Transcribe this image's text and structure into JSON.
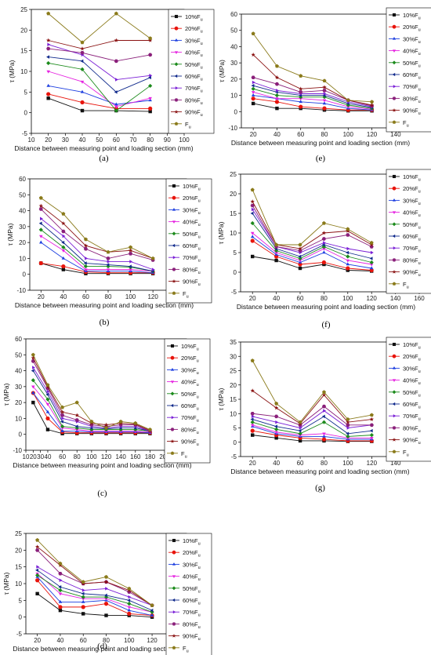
{
  "series_styles": [
    {
      "label": "10%F",
      "sub": "u",
      "color": "#111111",
      "marker": "square"
    },
    {
      "label": "20%F",
      "sub": "u",
      "color": "#e8140c",
      "marker": "circle"
    },
    {
      "label": "30%F",
      "sub": "u",
      "color": "#1d3fe0",
      "marker": "triangle"
    },
    {
      "label": "40%F",
      "sub": "u",
      "color": "#e522e0",
      "marker": "triangle-down"
    },
    {
      "label": "50%F",
      "sub": "u",
      "color": "#1b8a1b",
      "marker": "diamond"
    },
    {
      "label": "60%F",
      "sub": "u",
      "color": "#102a8c",
      "marker": "triangle-left"
    },
    {
      "label": "70%F",
      "sub": "u",
      "color": "#7a1fd6",
      "marker": "triangle-right"
    },
    {
      "label": "80%F",
      "sub": "u",
      "color": "#8a1f7a",
      "marker": "hexagon"
    },
    {
      "label": "90%F",
      "sub": "u",
      "color": "#8a1212",
      "marker": "star"
    },
    {
      "label": "F",
      "sub": "u",
      "color": "#8a7a1a",
      "marker": "pentagon"
    }
  ],
  "chart_data": [
    {
      "id": "a",
      "type": "line",
      "panel_label": "(a)",
      "xlabel": "Distance between measuring point and loading section (mm)",
      "ylabel": "τ (MPa)",
      "xlim": [
        10,
        100
      ],
      "ylim": [
        -5,
        25
      ],
      "xticks": [
        10,
        20,
        30,
        40,
        50,
        60,
        70,
        80,
        90,
        100
      ],
      "yticks": [
        -5,
        0,
        5,
        10,
        15,
        20,
        25
      ],
      "x": [
        20,
        40,
        60,
        80
      ],
      "series": [
        {
          "style": 0,
          "values": [
            3.5,
            0.5,
            0.5,
            0.3
          ]
        },
        {
          "style": 1,
          "values": [
            4.5,
            2.5,
            1.0,
            1.0
          ]
        },
        {
          "style": 2,
          "values": [
            6.5,
            5.0,
            2.0,
            3.0
          ]
        },
        {
          "style": 3,
          "values": [
            10.0,
            7.5,
            1.5,
            3.5
          ]
        },
        {
          "style": 4,
          "values": [
            12.0,
            10.5,
            0.5,
            6.5
          ]
        },
        {
          "style": 5,
          "values": [
            13.5,
            12.5,
            5.0,
            8.5
          ]
        },
        {
          "style": 6,
          "values": [
            16.5,
            14.0,
            8.0,
            9.0
          ]
        },
        {
          "style": 7,
          "values": [
            15.5,
            14.5,
            12.5,
            14.0
          ]
        },
        {
          "style": 8,
          "values": [
            17.5,
            15.5,
            17.5,
            17.5
          ]
        },
        {
          "style": 9,
          "values": [
            24.0,
            17.0,
            24.0,
            18.0
          ]
        }
      ]
    },
    {
      "id": "b",
      "type": "line",
      "panel_label": "(b)",
      "xlabel": "Distance between measuring point and loading section (mm)",
      "ylabel": "τ (MPa)",
      "xlim": [
        10,
        150
      ],
      "ylim": [
        -10,
        60
      ],
      "xticks": [
        20,
        40,
        60,
        80,
        100,
        120,
        140
      ],
      "yticks": [
        -10,
        0,
        10,
        20,
        30,
        40,
        50,
        60
      ],
      "x": [
        20,
        40,
        60,
        80,
        100,
        120
      ],
      "series": [
        {
          "style": 0,
          "values": [
            7.0,
            3.0,
            0.5,
            0.5,
            0.5,
            0.5
          ]
        },
        {
          "style": 1,
          "values": [
            7.0,
            5.0,
            1.5,
            1.0,
            1.0,
            1.0
          ]
        },
        {
          "style": 2,
          "values": [
            20.0,
            10.0,
            2.0,
            2.0,
            2.0,
            1.0
          ]
        },
        {
          "style": 3,
          "values": [
            24.0,
            15.0,
            3.0,
            3.0,
            3.0,
            2.0
          ]
        },
        {
          "style": 4,
          "values": [
            28.0,
            17.0,
            5.0,
            5.0,
            4.5,
            2.0
          ]
        },
        {
          "style": 5,
          "values": [
            32.0,
            20.0,
            7.0,
            6.0,
            5.0,
            2.0
          ]
        },
        {
          "style": 6,
          "values": [
            35.0,
            24.0,
            10.0,
            8.0,
            8.0,
            3.0
          ]
        },
        {
          "style": 7,
          "values": [
            41.0,
            27.0,
            16.0,
            10.0,
            13.0,
            9.0
          ]
        },
        {
          "style": 8,
          "values": [
            43.0,
            32.0,
            18.0,
            14.0,
            15.0,
            10.0
          ]
        },
        {
          "style": 9,
          "values": [
            48.0,
            38.0,
            22.0,
            14.0,
            17.0,
            10.0
          ]
        }
      ]
    },
    {
      "id": "c",
      "type": "line",
      "panel_label": "(c)",
      "xlabel": "Distance between measuring point and loading section (mm)",
      "ylabel": "τ (MPa)",
      "xlim": [
        10,
        230
      ],
      "ylim": [
        -10,
        60
      ],
      "xticks": [
        10,
        20,
        30,
        40,
        60,
        80,
        100,
        120,
        140,
        160,
        180,
        200,
        220
      ],
      "yticks": [
        -10,
        0,
        10,
        20,
        30,
        40,
        50,
        60
      ],
      "x": [
        20,
        40,
        60,
        80,
        100,
        120,
        140,
        160,
        180
      ],
      "series": [
        {
          "style": 0,
          "values": [
            20.0,
            3.0,
            0.5,
            0.5,
            0.5,
            0.5,
            0.5,
            0.5,
            0.5
          ]
        },
        {
          "style": 1,
          "values": [
            26.0,
            10.0,
            1.5,
            1.0,
            1.0,
            1.0,
            1.0,
            1.0,
            1.0
          ]
        },
        {
          "style": 2,
          "values": [
            26.0,
            14.0,
            2.0,
            2.0,
            1.5,
            1.5,
            1.5,
            1.5,
            1.0
          ]
        },
        {
          "style": 3,
          "values": [
            30.0,
            19.0,
            4.0,
            3.0,
            2.0,
            2.0,
            2.0,
            2.0,
            1.5
          ]
        },
        {
          "style": 4,
          "values": [
            34.0,
            22.0,
            5.0,
            4.0,
            3.0,
            3.0,
            3.0,
            3.0,
            2.0
          ]
        },
        {
          "style": 5,
          "values": [
            40.0,
            25.0,
            8.0,
            5.0,
            4.0,
            3.5,
            4.0,
            4.0,
            2.0
          ]
        },
        {
          "style": 6,
          "values": [
            42.0,
            27.0,
            10.0,
            8.0,
            5.0,
            4.0,
            5.0,
            5.0,
            2.0
          ]
        },
        {
          "style": 7,
          "values": [
            46.0,
            29.0,
            12.0,
            9.0,
            6.0,
            5.0,
            6.0,
            6.0,
            2.0
          ]
        },
        {
          "style": 8,
          "values": [
            48.0,
            30.0,
            14.0,
            12.0,
            7.0,
            6.0,
            7.0,
            6.5,
            2.5
          ]
        },
        {
          "style": 9,
          "values": [
            50.0,
            31.0,
            17.0,
            20.0,
            8.0,
            4.0,
            8.0,
            7.0,
            3.0
          ]
        }
      ]
    },
    {
      "id": "d",
      "type": "line",
      "panel_label": "(d)",
      "xlabel": "Distance between measuring point and loading section (mm)",
      "ylabel": "τ (MPa)",
      "xlim": [
        10,
        150
      ],
      "ylim": [
        -5,
        25
      ],
      "xticks": [
        20,
        40,
        60,
        80,
        100,
        120,
        140
      ],
      "yticks": [
        -5,
        0,
        5,
        10,
        15,
        20,
        25
      ],
      "x": [
        20,
        40,
        60,
        80,
        100,
        120
      ],
      "series": [
        {
          "style": 0,
          "values": [
            7.0,
            2.0,
            1.0,
            0.5,
            0.5,
            0.0
          ]
        },
        {
          "style": 1,
          "values": [
            11.0,
            3.0,
            3.0,
            4.0,
            1.0,
            0.5
          ]
        },
        {
          "style": 2,
          "values": [
            12.0,
            4.5,
            4.5,
            5.0,
            2.0,
            0.5
          ]
        },
        {
          "style": 3,
          "values": [
            13.0,
            7.0,
            5.5,
            5.5,
            3.0,
            1.5
          ]
        },
        {
          "style": 4,
          "values": [
            12.5,
            8.0,
            6.0,
            6.0,
            4.0,
            1.5
          ]
        },
        {
          "style": 5,
          "values": [
            14.0,
            9.0,
            7.0,
            6.5,
            5.0,
            2.0
          ]
        },
        {
          "style": 6,
          "values": [
            15.0,
            11.0,
            8.0,
            8.5,
            6.0,
            3.5
          ]
        },
        {
          "style": 7,
          "values": [
            20.0,
            13.0,
            10.0,
            10.5,
            7.5,
            3.5
          ]
        },
        {
          "style": 8,
          "values": [
            21.0,
            15.5,
            10.0,
            10.5,
            8.0,
            3.5
          ]
        },
        {
          "style": 9,
          "values": [
            23.0,
            16.0,
            10.5,
            12.0,
            8.5,
            3.5
          ]
        }
      ]
    },
    {
      "id": "e",
      "type": "line",
      "panel_label": "(e)",
      "xlabel": "Distance between measuring point and loading section (mm)",
      "ylabel": "τ (MPa)",
      "xlim": [
        10,
        150
      ],
      "ylim": [
        -10,
        60
      ],
      "xticks": [
        20,
        40,
        60,
        80,
        100,
        120,
        140
      ],
      "yticks": [
        -10,
        0,
        10,
        20,
        30,
        40,
        50,
        60
      ],
      "x": [
        20,
        40,
        60,
        80,
        100,
        120
      ],
      "series": [
        {
          "style": 0,
          "values": [
            5.0,
            2.0,
            2.0,
            1.0,
            0.5,
            0.5
          ]
        },
        {
          "style": 1,
          "values": [
            8.0,
            6.0,
            3.0,
            2.0,
            1.0,
            1.0
          ]
        },
        {
          "style": 2,
          "values": [
            10.0,
            8.0,
            6.0,
            5.0,
            2.0,
            1.0
          ]
        },
        {
          "style": 3,
          "values": [
            12.0,
            8.0,
            8.0,
            7.0,
            3.0,
            1.5
          ]
        },
        {
          "style": 4,
          "values": [
            14.0,
            10.0,
            9.0,
            9.0,
            4.0,
            2.0
          ]
        },
        {
          "style": 5,
          "values": [
            16.0,
            12.0,
            10.0,
            10.0,
            5.0,
            2.5
          ]
        },
        {
          "style": 6,
          "values": [
            18.0,
            13.0,
            11.0,
            11.0,
            6.0,
            3.0
          ]
        },
        {
          "style": 7,
          "values": [
            21.0,
            17.0,
            12.0,
            13.0,
            7.0,
            3.5
          ]
        },
        {
          "style": 8,
          "values": [
            35.0,
            21.0,
            14.0,
            15.0,
            7.0,
            4.0
          ]
        },
        {
          "style": 9,
          "values": [
            48.0,
            28.0,
            22.0,
            19.0,
            7.0,
            6.0
          ]
        }
      ]
    },
    {
      "id": "f",
      "type": "line",
      "panel_label": "(f)",
      "xlabel": "Distance between measuring point and loading section (mm)",
      "ylabel": "τ (MPa)",
      "xlim": [
        10,
        160
      ],
      "ylim": [
        -5,
        25
      ],
      "xticks": [
        20,
        40,
        60,
        80,
        100,
        120,
        140,
        160
      ],
      "yticks": [
        -5,
        0,
        5,
        10,
        15,
        20,
        25
      ],
      "x": [
        20,
        40,
        60,
        80,
        100,
        120
      ],
      "series": [
        {
          "style": 0,
          "values": [
            4.0,
            3.0,
            1.0,
            2.0,
            0.5,
            0.3
          ]
        },
        {
          "style": 1,
          "values": [
            8.0,
            4.0,
            2.0,
            2.5,
            1.0,
            0.5
          ]
        },
        {
          "style": 2,
          "values": [
            9.0,
            4.5,
            2.5,
            5.0,
            2.0,
            1.0
          ]
        },
        {
          "style": 3,
          "values": [
            10.0,
            5.0,
            3.0,
            6.0,
            3.0,
            2.0
          ]
        },
        {
          "style": 4,
          "values": [
            12.5,
            5.5,
            3.5,
            6.5,
            4.0,
            2.5
          ]
        },
        {
          "style": 5,
          "values": [
            15.0,
            6.0,
            4.0,
            7.0,
            5.0,
            3.5
          ]
        },
        {
          "style": 6,
          "values": [
            16.0,
            6.5,
            5.0,
            7.5,
            6.0,
            5.0
          ]
        },
        {
          "style": 7,
          "values": [
            17.0,
            6.5,
            5.5,
            8.5,
            9.5,
            6.5
          ]
        },
        {
          "style": 8,
          "values": [
            18.0,
            7.0,
            6.0,
            10.0,
            10.5,
            7.0
          ]
        },
        {
          "style": 9,
          "values": [
            21.0,
            7.0,
            7.0,
            12.5,
            11.0,
            7.5
          ]
        }
      ]
    },
    {
      "id": "g",
      "type": "line",
      "panel_label": "(g)",
      "xlabel": "Distance between measuring point and loading section (mm)",
      "ylabel": "τ (MPa)",
      "xlim": [
        10,
        150
      ],
      "ylim": [
        -5,
        35
      ],
      "xticks": [
        20,
        40,
        60,
        80,
        100,
        120,
        140
      ],
      "yticks": [
        -5,
        0,
        5,
        10,
        15,
        20,
        25,
        30,
        35
      ],
      "x": [
        20,
        40,
        60,
        80,
        100,
        120
      ],
      "series": [
        {
          "style": 0,
          "values": [
            2.5,
            1.5,
            0.5,
            0.5,
            0.3,
            0.3
          ]
        },
        {
          "style": 1,
          "values": [
            4.0,
            2.5,
            1.5,
            1.0,
            0.5,
            0.5
          ]
        },
        {
          "style": 2,
          "values": [
            5.5,
            3.0,
            2.0,
            2.0,
            1.0,
            1.0
          ]
        },
        {
          "style": 3,
          "values": [
            6.0,
            3.5,
            2.5,
            3.0,
            1.5,
            1.5
          ]
        },
        {
          "style": 4,
          "values": [
            7.0,
            4.5,
            3.0,
            7.0,
            2.0,
            2.5
          ]
        },
        {
          "style": 5,
          "values": [
            8.0,
            5.5,
            4.0,
            9.0,
            3.0,
            4.0
          ]
        },
        {
          "style": 6,
          "values": [
            9.0,
            7.0,
            5.0,
            11.0,
            5.0,
            6.0
          ]
        },
        {
          "style": 7,
          "values": [
            10.0,
            9.0,
            6.0,
            12.5,
            6.0,
            6.0
          ]
        },
        {
          "style": 8,
          "values": [
            18.0,
            12.0,
            6.5,
            16.5,
            7.0,
            8.0
          ]
        },
        {
          "style": 9,
          "values": [
            28.5,
            13.5,
            7.0,
            17.5,
            8.0,
            9.5
          ]
        }
      ]
    }
  ]
}
